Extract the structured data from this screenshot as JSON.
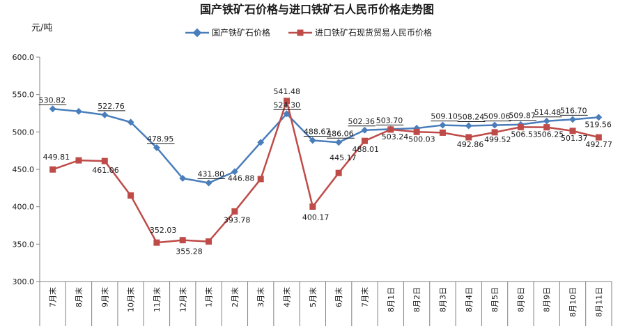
{
  "chart_data": {
    "type": "line",
    "title": "国产铁矿石价格与进口铁矿石人民币价格走势图",
    "ylabel": "元/吨",
    "xlabel": "",
    "ylim": [
      300,
      600
    ],
    "yticks": [
      "300.0",
      "350.0",
      "400.0",
      "450.0",
      "500.0",
      "550.0",
      "600.0"
    ],
    "ytick_values": [
      300,
      350,
      400,
      450,
      500,
      550,
      600
    ],
    "grid": false,
    "legend_position": "top",
    "categories": [
      "7月末",
      "8月末",
      "9月末",
      "10月末",
      "11月末",
      "12月末",
      "1月末",
      "2月末",
      "3月末",
      "4月末",
      "5月末",
      "6月末",
      "7月末",
      "8月1日",
      "8月2日",
      "8月3日",
      "8月4日",
      "8月5日",
      "8月8日",
      "8月9日",
      "8月10日",
      "8月11日"
    ],
    "series": [
      {
        "name": "国产铁矿石价格",
        "color": "#4a7ebb",
        "marker": "diamond",
        "values": [
          530.82,
          527.5,
          522.76,
          513,
          478.95,
          438,
          431.8,
          446.88,
          486,
          524.3,
          488.67,
          486.06,
          502.36,
          503.7,
          505,
          509.1,
          508.24,
          509.06,
          509.87,
          514.48,
          516.7,
          519.56
        ],
        "labels": [
          "530.82",
          "",
          "522.76",
          "",
          "478.95",
          "",
          "431.80",
          "446.88",
          "",
          "524.30",
          "488.67",
          "486.06",
          "502.36",
          "503.70",
          "",
          "509.10",
          "508.24",
          "509.06",
          "509.87",
          "514.48",
          "516.70",
          "519.56"
        ]
      },
      {
        "name": "进口铁矿石现货贸易人民币价格",
        "color": "#be4b48",
        "marker": "square",
        "values": [
          449.81,
          462,
          461.06,
          415,
          352.03,
          355.28,
          353.5,
          393.78,
          437,
          541.48,
          400.17,
          445.17,
          488.01,
          503.24,
          500.03,
          499,
          492.86,
          499.52,
          506.53,
          506.25,
          501.37,
          492.77
        ],
        "labels": [
          "449.81",
          "",
          "461.06",
          "",
          "352.03",
          "355.28",
          "",
          "393.78",
          "",
          "541.48",
          "400.17",
          "445.17",
          "488.01",
          "503.24",
          "500.03",
          "",
          "492.86",
          "499.52",
          "506.53",
          "506.25",
          "501.37",
          "492.77"
        ]
      }
    ]
  }
}
